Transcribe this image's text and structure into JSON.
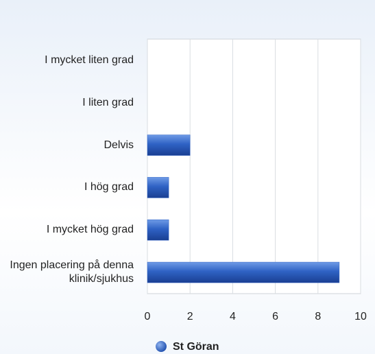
{
  "chart_data": {
    "type": "bar",
    "orientation": "horizontal",
    "categories": [
      "I mycket liten grad",
      "I liten grad",
      "Delvis",
      "I hög grad",
      "I mycket hög grad",
      "Ingen placering på denna klinik/sjukhus"
    ],
    "series": [
      {
        "name": "St Göran",
        "color": "#2f62c4",
        "values": [
          0,
          0,
          2,
          1,
          1,
          9
        ]
      }
    ],
    "xlim": [
      0,
      10
    ],
    "xticks": [
      0,
      2,
      4,
      6,
      8,
      10
    ],
    "grid": true,
    "legend": "bottom"
  }
}
